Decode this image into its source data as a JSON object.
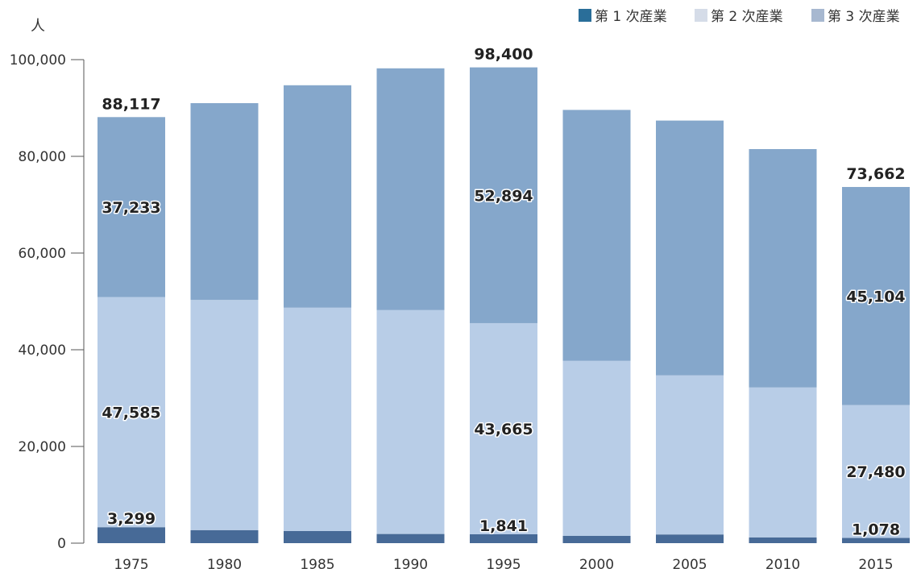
{
  "chart_data": {
    "type": "bar",
    "stacked": true,
    "unit_label": "人",
    "categories": [
      "1975",
      "1980",
      "1985",
      "1990",
      "1995",
      "2000",
      "2005",
      "2010",
      "2015"
    ],
    "series": [
      {
        "name": "第 1 次産業",
        "color": "#476a97",
        "values": [
          3299,
          2700,
          2500,
          1900,
          1841,
          1500,
          1800,
          1200,
          1078
        ]
      },
      {
        "name": "第 2 次産業",
        "color": "#b8cde7",
        "values": [
          47585,
          47600,
          46200,
          46300,
          43665,
          36200,
          32900,
          31000,
          27480
        ]
      },
      {
        "name": "第 3 次産業",
        "color": "#85a7cb",
        "values": [
          37233,
          40700,
          46000,
          50000,
          52894,
          51900,
          52700,
          49300,
          45104
        ]
      }
    ],
    "legend_swatch_colors": [
      "#2a6e99",
      "#d5dce8",
      "#a7b8d0"
    ],
    "totals": [
      88117,
      null,
      null,
      null,
      98400,
      null,
      null,
      null,
      73662
    ],
    "segment_labels": {
      "0": [
        "3,299",
        "47,585",
        "37,233"
      ],
      "4": [
        "1,841",
        "43,665",
        "52,894"
      ],
      "8": [
        "1,078",
        "27,480",
        "45,104"
      ]
    },
    "total_labels": {
      "0": "88,117",
      "4": "98,400",
      "8": "73,662"
    },
    "y_ticks": [
      {
        "value": 0,
        "label": "0"
      },
      {
        "value": 20000,
        "label": "20,000"
      },
      {
        "value": 40000,
        "label": "40,000"
      },
      {
        "value": 60000,
        "label": "60,000"
      },
      {
        "value": 80000,
        "label": "80,000"
      },
      {
        "value": 100000,
        "label": "100,000"
      }
    ],
    "ylim": [
      0,
      100000
    ],
    "grid": false,
    "legend_position": "top-right"
  }
}
